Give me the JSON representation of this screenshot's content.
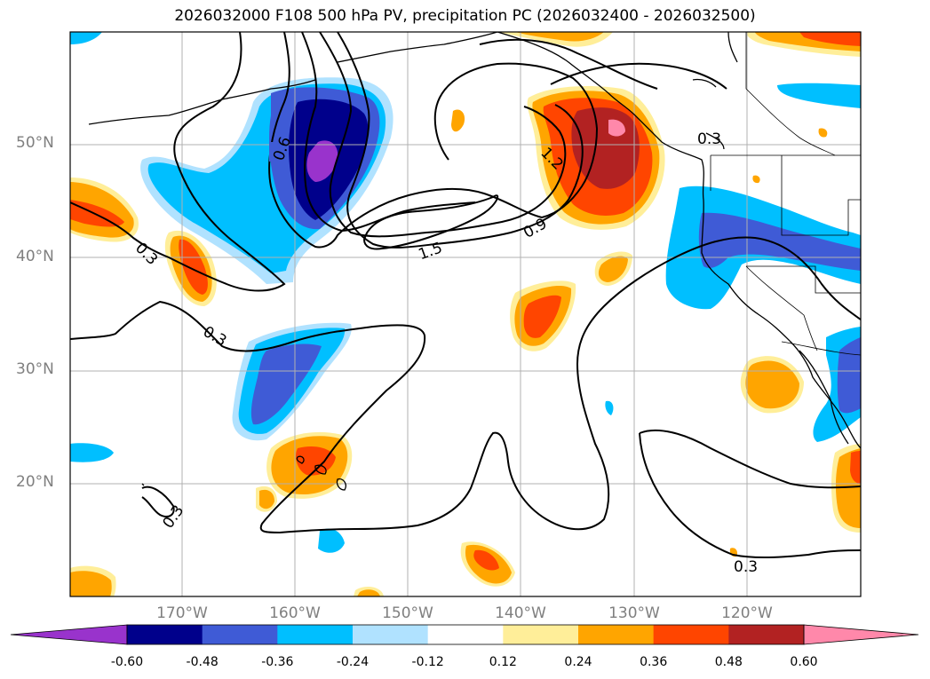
{
  "title": "2026032000 F108 500 hPa PV, precipitation PC (2026032400 - 2026032500)",
  "lat_labels": [
    "50°N",
    "40°N",
    "30°N",
    "20°N"
  ],
  "lon_labels": [
    "170°W",
    "160°W",
    "150°W",
    "140°W",
    "130°W",
    "120°W"
  ],
  "colorbar": {
    "colors": [
      "#9933cc",
      "#00008b",
      "#3f5bd6",
      "#00bfff",
      "#b0e2ff",
      "#ffffff",
      "#ffee99",
      "#ffa500",
      "#ff4500",
      "#b22222",
      "#ff88aa"
    ],
    "labels": [
      "-0.60",
      "-0.48",
      "-0.36",
      "-0.24",
      "-0.12",
      "0.12",
      "0.24",
      "0.36",
      "0.48",
      "0.60"
    ]
  },
  "contour_labels": [
    "0.6",
    "1.2",
    "1.5",
    "0.9",
    "0.3",
    "0.3",
    "0.3",
    "0.3",
    "0.3"
  ]
}
